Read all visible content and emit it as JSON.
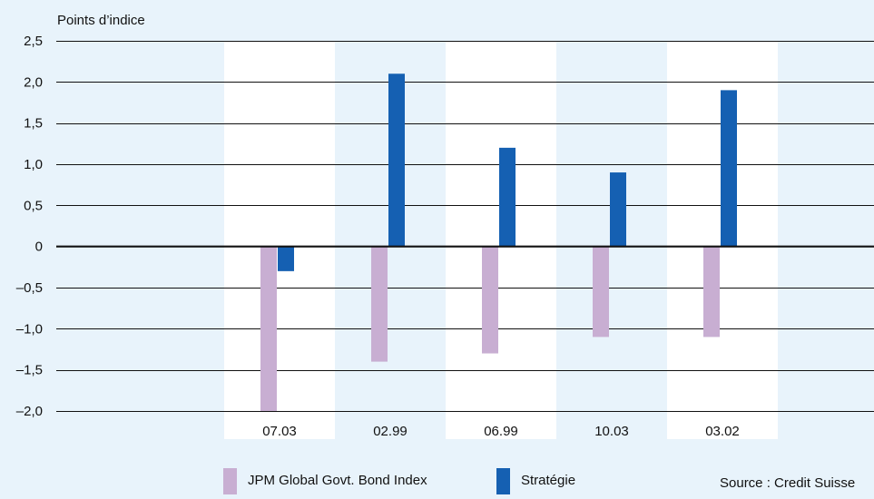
{
  "chart_data": {
    "type": "bar",
    "ylabel": "Points d’indice",
    "categories": [
      "07.03",
      "02.99",
      "06.99",
      "10.03",
      "03.02"
    ],
    "series": [
      {
        "name": "JPM Global Govt. Bond Index",
        "values": [
          -2.0,
          -1.4,
          -1.3,
          -1.1,
          -1.1
        ]
      },
      {
        "name": "Stratégie",
        "values": [
          -0.3,
          2.1,
          1.2,
          0.9,
          1.9
        ]
      }
    ],
    "ylim": [
      -2.0,
      2.5
    ],
    "yticks": [
      "2,5",
      "2,0",
      "1,5",
      "1,0",
      "0,5",
      "0",
      "–0,5",
      "–1,0",
      "–1,5",
      "–2,0"
    ],
    "ytick_values": [
      2.5,
      2.0,
      1.5,
      1.0,
      0.5,
      0,
      -0.5,
      -1.0,
      -1.5,
      -2.0
    ],
    "grid": true,
    "legend_position": "bottom",
    "source": "Source : Credit Suisse",
    "colors": {
      "background": "#e8f3fb",
      "band": "#ffffff",
      "series_jpm": "#c8aed2",
      "series_strategie": "#1560b2",
      "grid": "#111111"
    }
  }
}
